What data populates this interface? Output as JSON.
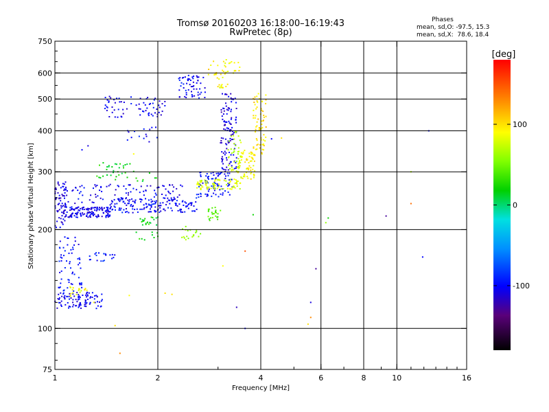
{
  "chart_data": {
    "type": "scatter",
    "title": "Tromsø 20160203 16:18:00–16:19:43",
    "subtitle": "RwPretec (8p)",
    "xlabel": "Frequency [MHz]",
    "ylabel": "Stationary phase Virtual Height [km]",
    "x_scale": "log",
    "y_scale": "log",
    "xlim": [
      1,
      16
    ],
    "ylim": [
      75,
      750
    ],
    "x_ticks": [
      1,
      2,
      4,
      6,
      8,
      10,
      16
    ],
    "x_tick_labels": [
      "1",
      "2",
      "4",
      "6",
      "8",
      "10",
      "16"
    ],
    "x_grid_lines": [
      2,
      4,
      6,
      8,
      10
    ],
    "y_ticks": [
      75,
      100,
      200,
      300,
      400,
      500,
      600,
      750
    ],
    "y_tick_labels": [
      "75",
      "100",
      "200",
      "300",
      "400",
      "500",
      "600",
      "750"
    ],
    "y_grid_lines": [
      100,
      200,
      300,
      400,
      500,
      600
    ],
    "grid": true,
    "info": {
      "header": "Phases",
      "line_o": "mean, sd,O: -97.5, 15.3",
      "line_x": "mean, sd,X:  78.6, 18.4"
    },
    "colorbar": {
      "label": "[deg]",
      "range": [
        -180,
        180
      ],
      "ticks": [
        100,
        0,
        -100
      ],
      "tick_labels": [
        "100",
        "0",
        "-100"
      ],
      "colormap": "rainbow"
    },
    "point_groups": [
      {
        "x_range": [
          1.0,
          1.08
        ],
        "y_range": [
          200,
          280
        ],
        "count": 70,
        "phase": -110
      },
      {
        "x_range": [
          1.06,
          1.45
        ],
        "y_range": [
          218,
          235
        ],
        "count": 140,
        "phase": -105
      },
      {
        "x_range": [
          1.45,
          2.6
        ],
        "y_range": [
          225,
          250
        ],
        "count": 150,
        "phase": -100
      },
      {
        "x_range": [
          2.6,
          3.3
        ],
        "y_range": [
          250,
          300
        ],
        "count": 90,
        "phase": -95
      },
      {
        "x_range": [
          3.05,
          3.4
        ],
        "y_range": [
          300,
          520
        ],
        "count": 120,
        "phase": -110
      },
      {
        "x_range": [
          1.05,
          2.4
        ],
        "y_range": [
          240,
          275
        ],
        "count": 110,
        "phase": -105
      },
      {
        "x_range": [
          1.3,
          2.0
        ],
        "y_range": [
          280,
          320
        ],
        "count": 40,
        "phase": 20
      },
      {
        "x_range": [
          2.6,
          3.5
        ],
        "y_range": [
          265,
          285
        ],
        "count": 80,
        "phase": 80
      },
      {
        "x_range": [
          3.4,
          3.85
        ],
        "y_range": [
          285,
          350
        ],
        "count": 70,
        "phase": 90
      },
      {
        "x_range": [
          3.8,
          4.15
        ],
        "y_range": [
          340,
          520
        ],
        "count": 70,
        "phase": 100
      },
      {
        "x_range": [
          3.2,
          3.5
        ],
        "y_range": [
          300,
          400
        ],
        "count": 40,
        "phase": 70
      },
      {
        "x_range": [
          1.4,
          2.1
        ],
        "y_range": [
          440,
          510
        ],
        "count": 70,
        "phase": -105
      },
      {
        "x_range": [
          2.3,
          2.75
        ],
        "y_range": [
          500,
          590
        ],
        "count": 60,
        "phase": -100
      },
      {
        "x_range": [
          2.8,
          3.5
        ],
        "y_range": [
          590,
          660
        ],
        "count": 30,
        "phase": 95
      },
      {
        "x_range": [
          2.9,
          3.2
        ],
        "y_range": [
          540,
          610
        ],
        "count": 20,
        "phase": 90
      },
      {
        "x_range": [
          1.0,
          1.38
        ],
        "y_range": [
          115,
          130
        ],
        "count": 100,
        "phase": -105
      },
      {
        "x_range": [
          1.02,
          1.2
        ],
        "y_range": [
          130,
          190
        ],
        "count": 60,
        "phase": -100
      },
      {
        "x_range": [
          1.25,
          1.5
        ],
        "y_range": [
          160,
          170
        ],
        "count": 20,
        "phase": -95
      },
      {
        "x_range": [
          1.7,
          2.0
        ],
        "y_range": [
          185,
          220
        ],
        "count": 30,
        "phase": 20
      },
      {
        "x_range": [
          2.35,
          2.7
        ],
        "y_range": [
          185,
          205
        ],
        "count": 20,
        "phase": 60
      },
      {
        "x_range": [
          2.8,
          3.05
        ],
        "y_range": [
          210,
          235
        ],
        "count": 25,
        "phase": 40
      },
      {
        "x_range": [
          1.1,
          1.25
        ],
        "y_range": [
          125,
          135
        ],
        "count": 20,
        "phase": 90
      },
      {
        "x_range": [
          1.6,
          2.0
        ],
        "y_range": [
          370,
          410
        ],
        "count": 15,
        "phase": -100
      }
    ],
    "scattered_points": [
      {
        "x": 12.4,
        "y": 400,
        "phase": -100
      },
      {
        "x": 11.0,
        "y": 300,
        "phase": 70
      },
      {
        "x": 11.0,
        "y": 240,
        "phase": 140
      },
      {
        "x": 9.3,
        "y": 220,
        "phase": -130
      },
      {
        "x": 11.9,
        "y": 165,
        "phase": -100
      },
      {
        "x": 5.8,
        "y": 152,
        "phase": -130
      },
      {
        "x": 5.6,
        "y": 120,
        "phase": -110
      },
      {
        "x": 5.6,
        "y": 108,
        "phase": 130
      },
      {
        "x": 5.5,
        "y": 103,
        "phase": 100
      },
      {
        "x": 6.3,
        "y": 217,
        "phase": 20
      },
      {
        "x": 6.2,
        "y": 210,
        "phase": 60
      },
      {
        "x": 4.6,
        "y": 380,
        "phase": 100
      },
      {
        "x": 4.3,
        "y": 378,
        "phase": -100
      },
      {
        "x": 3.4,
        "y": 116,
        "phase": -120
      },
      {
        "x": 3.6,
        "y": 100,
        "phase": -100
      },
      {
        "x": 3.1,
        "y": 155,
        "phase": 90
      },
      {
        "x": 3.6,
        "y": 172,
        "phase": 150
      },
      {
        "x": 3.8,
        "y": 222,
        "phase": 20
      },
      {
        "x": 2.1,
        "y": 128,
        "phase": 100
      },
      {
        "x": 2.2,
        "y": 127,
        "phase": 100
      },
      {
        "x": 1.65,
        "y": 126,
        "phase": 90
      },
      {
        "x": 1.5,
        "y": 102,
        "phase": 100
      },
      {
        "x": 1.55,
        "y": 84,
        "phase": 130
      },
      {
        "x": 1.3,
        "y": 120,
        "phase": 90
      },
      {
        "x": 1.7,
        "y": 340,
        "phase": 90
      },
      {
        "x": 1.2,
        "y": 350,
        "phase": -100
      },
      {
        "x": 1.25,
        "y": 360,
        "phase": -110
      }
    ]
  }
}
